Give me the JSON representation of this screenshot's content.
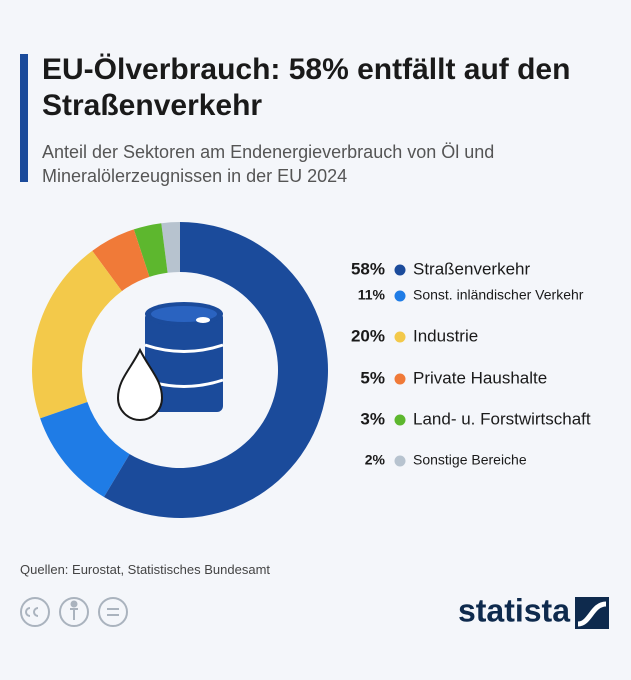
{
  "chart_data": {
    "type": "donut",
    "title": "EU-Ölverbrauch: 58% entfällt auf den Straßenverkehr",
    "subtitle": "Anteil der Sektoren am Endenergieverbrauch von Öl und Mineralölerzeugnissen in der EU 2024",
    "categories": [
      "Straßenverkehr",
      "Sonst. inländischer Verkehr",
      "Industrie",
      "Private Haushalte",
      "Land- u. Forstwirtschaft",
      "Sonstige Bereiche"
    ],
    "values": [
      58,
      11,
      20,
      5,
      3,
      2
    ],
    "value_labels": [
      "58%",
      "11%",
      "20%",
      "5%",
      "3%",
      "2%"
    ],
    "colors": [
      "#1b4b9b",
      "#1f7ce6",
      "#f3c94a",
      "#f07a38",
      "#5db72e",
      "#b7c3cf"
    ],
    "source": "Quellen: Eurostat, Statistisches Bundesamt",
    "brand": "statista"
  }
}
